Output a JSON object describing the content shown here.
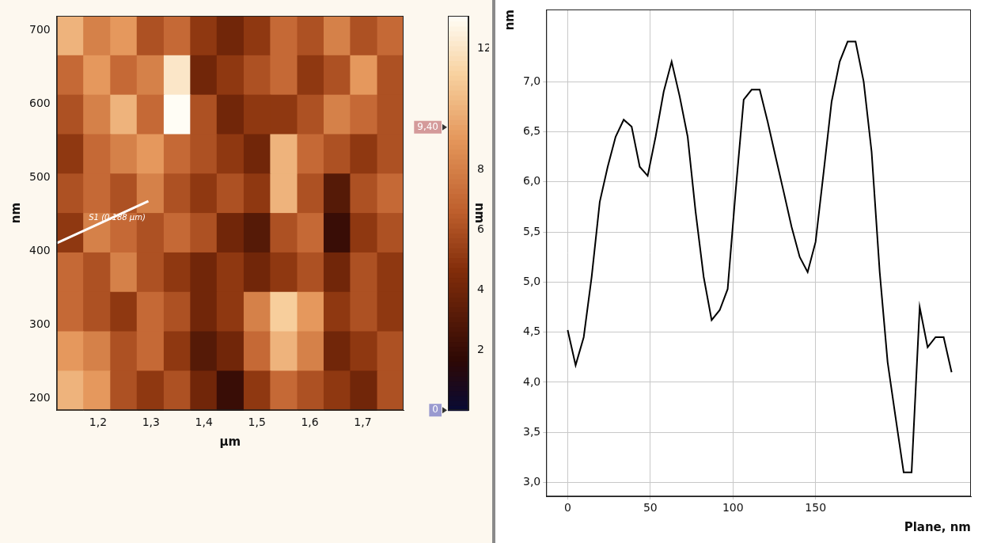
{
  "chart_data": [
    {
      "type": "heatmap",
      "x_label": "µm",
      "y_label": "nm",
      "xlim": [
        1.122,
        1.777
      ],
      "ylim": [
        184,
        720
      ],
      "xticks": [
        {
          "value": 1.2,
          "label": "1,2"
        },
        {
          "value": 1.3,
          "label": "1,3"
        },
        {
          "value": 1.4,
          "label": "1,4"
        },
        {
          "value": 1.5,
          "label": "1,5"
        },
        {
          "value": 1.6,
          "label": "1,6"
        },
        {
          "value": 1.7,
          "label": "1,7"
        }
      ],
      "yticks": [
        200,
        300,
        400,
        500,
        600,
        700
      ],
      "grid": false,
      "cells": {
        "x_edges": [
          1.122,
          1.172,
          1.223,
          1.273,
          1.324,
          1.374,
          1.424,
          1.475,
          1.525,
          1.576,
          1.626,
          1.676,
          1.727,
          1.777
        ],
        "y_edges": [
          720,
          666.4,
          612.8,
          559.2,
          505.6,
          452,
          398.4,
          344.8,
          291.2,
          237.6,
          184
        ],
        "values": [
          [
            10,
            8,
            9,
            6,
            7,
            5,
            4,
            5,
            7,
            6,
            8,
            6,
            7
          ],
          [
            7,
            9,
            7,
            8,
            12,
            4,
            5,
            6,
            7,
            5,
            6,
            9,
            6
          ],
          [
            6,
            8,
            10,
            7,
            13,
            6,
            4,
            5,
            5,
            6,
            8,
            7,
            6
          ],
          [
            5,
            7,
            8,
            9,
            7,
            6,
            5,
            4,
            10,
            7,
            6,
            5,
            6
          ],
          [
            6,
            7,
            6,
            8,
            6,
            5,
            6,
            5,
            10,
            6,
            3,
            6,
            7
          ],
          [
            5,
            8,
            7,
            6,
            7,
            6,
            4,
            3,
            6,
            7,
            2,
            5,
            6
          ],
          [
            7,
            6,
            8,
            6,
            5,
            4,
            5,
            4,
            5,
            6,
            4,
            6,
            5
          ],
          [
            7,
            6,
            5,
            7,
            6,
            4,
            5,
            8,
            11,
            9,
            5,
            6,
            5
          ],
          [
            9,
            8,
            6,
            7,
            5,
            3,
            4,
            7,
            10,
            8,
            4,
            5,
            6
          ],
          [
            10,
            9,
            6,
            5,
            6,
            4,
            2,
            5,
            7,
            6,
            5,
            4,
            6
          ]
        ]
      },
      "colorbar": {
        "label": "nm",
        "lim": [
          0,
          13.1
        ],
        "ticks": [
          2,
          4,
          6,
          8,
          12
        ],
        "markers": [
          {
            "value": 9.4,
            "label": "9,40"
          },
          {
            "value": 0,
            "label": "0"
          }
        ]
      },
      "profile": {
        "label": "S1 (0.188 µm)",
        "x": [
          1.122,
          1.295
        ],
        "y": [
          411,
          468
        ]
      }
    },
    {
      "type": "line",
      "x_label": "Plane, nm",
      "y_label": "nm",
      "color": "#000000",
      "grid": true,
      "xlim": [
        -13,
        244
      ],
      "ylim": [
        2.86,
        7.72
      ],
      "xticks": [
        0,
        50,
        100,
        150
      ],
      "yticks": [
        {
          "value": 3.0,
          "label": "3,0"
        },
        {
          "value": 3.5,
          "label": "3,5"
        },
        {
          "value": 4.0,
          "label": "4,0"
        },
        {
          "value": 4.5,
          "label": "4,5"
        },
        {
          "value": 5.0,
          "label": "5,0"
        },
        {
          "value": 5.5,
          "label": "5,5"
        },
        {
          "value": 6.0,
          "label": "6,0"
        },
        {
          "value": 6.5,
          "label": "6,5"
        },
        {
          "value": 7.0,
          "label": "7,0"
        }
      ],
      "x": [
        0,
        4.8,
        9.7,
        14.5,
        19.4,
        24.2,
        29.0,
        33.9,
        38.7,
        43.6,
        48.4,
        53.2,
        58.1,
        62.9,
        67.8,
        72.6,
        77.4,
        82.3,
        87.1,
        92.0,
        96.8,
        101.6,
        106.5,
        111.3,
        116.2,
        121.0,
        125.8,
        130.7,
        135.5,
        140.4,
        145.2,
        150.0,
        154.9,
        159.7,
        164.6,
        169.4,
        174.2,
        179.1,
        183.9,
        188.8,
        193.6,
        198.4,
        203.3,
        208.1,
        213.0,
        217.8,
        222.6,
        227.5,
        232.3
      ],
      "values": [
        4.52,
        4.17,
        4.45,
        5.05,
        5.8,
        6.15,
        6.45,
        6.62,
        6.55,
        6.15,
        6.06,
        6.45,
        6.9,
        7.2,
        6.85,
        6.45,
        5.7,
        5.05,
        4.62,
        4.72,
        4.93,
        5.9,
        6.82,
        6.92,
        6.92,
        6.6,
        6.25,
        5.9,
        5.55,
        5.25,
        5.1,
        5.4,
        6.1,
        6.8,
        7.2,
        7.4,
        7.4,
        7.0,
        6.3,
        5.1,
        4.2,
        3.65,
        3.1,
        3.1,
        4.75,
        4.35,
        4.45,
        4.45,
        4.1
      ]
    }
  ]
}
